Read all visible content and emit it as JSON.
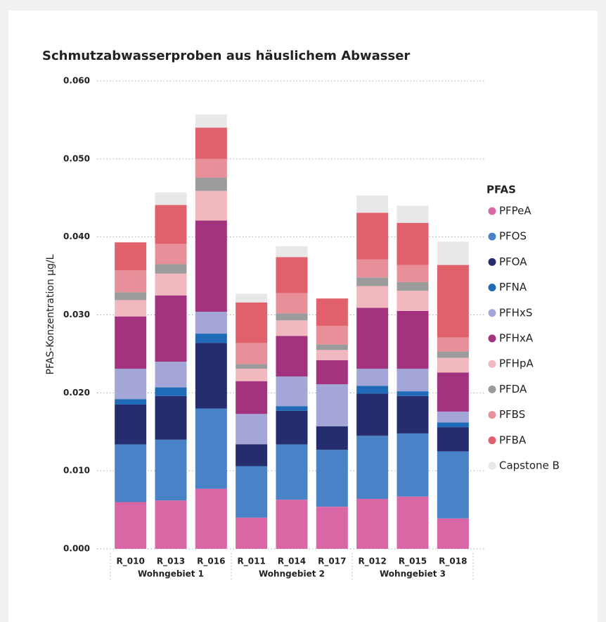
{
  "chart_data": {
    "type": "stacked_bar",
    "title": "Schmutzabwasserproben aus häuslichem Abwasser",
    "y_label": "PFAS-Konzentration µg/L",
    "groups": [
      {
        "name": "Wohngebiet 1",
        "categories": [
          "R_010",
          "R_013",
          "R_016"
        ]
      },
      {
        "name": "Wohngebiet 2",
        "categories": [
          "R_011",
          "R_014",
          "R_017"
        ]
      },
      {
        "name": "Wohngebiet 3",
        "categories": [
          "R_012",
          "R_015",
          "R_018"
        ]
      }
    ],
    "ylim": [
      0,
      0.06
    ],
    "yticks": [
      {
        "value": 0,
        "label": "0.000"
      },
      {
        "value": 0.01,
        "label": "0.010"
      },
      {
        "value": 0.02,
        "label": "0.020"
      },
      {
        "value": 0.03,
        "label": "0.030"
      },
      {
        "value": 0.04,
        "label": "0.040"
      },
      {
        "value": 0.05,
        "label": "0.050"
      },
      {
        "value": 0.06,
        "label": "0.060"
      }
    ],
    "grid": true,
    "legend_title": "PFAS",
    "legend_position": "right",
    "series": [
      {
        "name": "PFPeA",
        "color": "#d966a5",
        "values": [
          0.006,
          0.0062,
          0.0077,
          0.004,
          0.0063,
          0.0054,
          0.0064,
          0.0067,
          0.0039
        ]
      },
      {
        "name": "PFOS",
        "color": "#4a82c7",
        "values": [
          0.0074,
          0.0078,
          0.0103,
          0.0066,
          0.0071,
          0.0073,
          0.0081,
          0.0081,
          0.0086
        ]
      },
      {
        "name": "PFOA",
        "color": "#262d6e",
        "values": [
          0.0051,
          0.0056,
          0.0084,
          0.0028,
          0.0043,
          0.003,
          0.0054,
          0.0048,
          0.0031
        ]
      },
      {
        "name": "PFNA",
        "color": "#1f6bb8",
        "values": [
          0.0007,
          0.0011,
          0.0012,
          0,
          0.0006,
          0,
          0.001,
          0.0006,
          0.0006
        ]
      },
      {
        "name": "PFHxS",
        "color": "#a3a6d6",
        "values": [
          0.0039,
          0.0033,
          0.0028,
          0.0039,
          0.0038,
          0.0054,
          0.0022,
          0.0029,
          0.0014
        ]
      },
      {
        "name": "PFHxA",
        "color": "#a3327f",
        "values": [
          0.0067,
          0.0085,
          0.0117,
          0.0042,
          0.0052,
          0.0031,
          0.0078,
          0.0074,
          0.005
        ]
      },
      {
        "name": "PFHpA",
        "color": "#f2b8c0",
        "values": [
          0.0021,
          0.0028,
          0.0038,
          0.0016,
          0.002,
          0.0013,
          0.0028,
          0.0026,
          0.0019
        ]
      },
      {
        "name": "PFDA",
        "color": "#9b9b9b",
        "values": [
          0.001,
          0.0012,
          0.0017,
          0.0006,
          0.0009,
          0.0007,
          0.0011,
          0.0011,
          0.0008
        ]
      },
      {
        "name": "PFBS",
        "color": "#e8909a",
        "values": [
          0.0028,
          0.0026,
          0.0024,
          0.0027,
          0.0026,
          0.0024,
          0.0023,
          0.0022,
          0.0018
        ]
      },
      {
        "name": "PFBA",
        "color": "#e0606c",
        "values": [
          0.0036,
          0.005,
          0.004,
          0.0052,
          0.0046,
          0.0035,
          0.006,
          0.0054,
          0.0093
        ]
      },
      {
        "name": "Capstone B",
        "color": "#e8e8e8",
        "values": [
          0,
          0.0016,
          0.0017,
          0.0011,
          0.0014,
          0,
          0.0022,
          0.0022,
          0.003
        ]
      }
    ]
  }
}
